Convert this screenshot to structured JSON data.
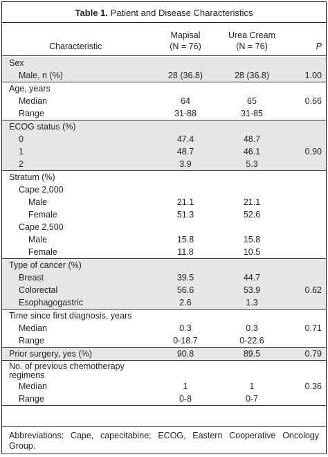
{
  "caption": {
    "number": "Table 1.",
    "title": " Patient and Disease Characteristics"
  },
  "header": {
    "characteristic": "Characteristic",
    "col1_name": "Mapisal",
    "col1_n": "(N = 76)",
    "col2_name": "Urea Cream",
    "col2_n": "(N = 76)",
    "col3": "P"
  },
  "sections": [
    {
      "rows": [
        {
          "label": "Sex",
          "indent": 0,
          "mapisal": "",
          "urea": "",
          "p": ""
        },
        {
          "label": "Male, n (%)",
          "indent": 1,
          "mapisal": "28 (36.8)",
          "urea": "28 (36.8)",
          "p": "1.00"
        }
      ]
    },
    {
      "rows": [
        {
          "label": "Age, years",
          "indent": 0,
          "mapisal": "",
          "urea": "",
          "p": ""
        },
        {
          "label": "Median",
          "indent": 1,
          "mapisal": "64",
          "urea": "65",
          "p": "0.66"
        },
        {
          "label": "Range",
          "indent": 1,
          "mapisal": "31-88",
          "urea": "31-85",
          "p": ""
        }
      ]
    },
    {
      "rows": [
        {
          "label": "ECOG status (%)",
          "indent": 0,
          "mapisal": "",
          "urea": "",
          "p": ""
        },
        {
          "label": "0",
          "indent": 1,
          "mapisal": "47.4",
          "urea": "48.7",
          "p": ""
        },
        {
          "label": "1",
          "indent": 1,
          "mapisal": "48.7",
          "urea": "46.1",
          "p": "0.90"
        },
        {
          "label": "2",
          "indent": 1,
          "mapisal": "3.9",
          "urea": "5.3",
          "p": ""
        }
      ]
    },
    {
      "rows": [
        {
          "label": "Stratum (%)",
          "indent": 0,
          "mapisal": "",
          "urea": "",
          "p": ""
        },
        {
          "label": "Cape 2,000",
          "indent": 1,
          "mapisal": "",
          "urea": "",
          "p": ""
        },
        {
          "label": "Male",
          "indent": 2,
          "mapisal": "21.1",
          "urea": "21.1",
          "p": ""
        },
        {
          "label": "Female",
          "indent": 2,
          "mapisal": "51.3",
          "urea": "52.6",
          "p": ""
        },
        {
          "label": "Cape 2,500",
          "indent": 1,
          "mapisal": "",
          "urea": "",
          "p": ""
        },
        {
          "label": "Male",
          "indent": 2,
          "mapisal": "15.8",
          "urea": "15.8",
          "p": ""
        },
        {
          "label": "Female",
          "indent": 2,
          "mapisal": "11.8",
          "urea": "10.5",
          "p": ""
        }
      ]
    },
    {
      "rows": [
        {
          "label": "Type of cancer (%)",
          "indent": 0,
          "mapisal": "",
          "urea": "",
          "p": ""
        },
        {
          "label": "Breast",
          "indent": 1,
          "mapisal": "39.5",
          "urea": "44.7",
          "p": ""
        },
        {
          "label": "Colorectal",
          "indent": 1,
          "mapisal": "56.6",
          "urea": "53.9",
          "p": "0.62"
        },
        {
          "label": "Esophagogastric",
          "indent": 1,
          "mapisal": "2.6",
          "urea": "1.3",
          "p": ""
        }
      ]
    },
    {
      "rows": [
        {
          "label": "Time since first diagnosis, years",
          "indent": 0,
          "mapisal": "",
          "urea": "",
          "p": ""
        },
        {
          "label": "Median",
          "indent": 1,
          "mapisal": "0.3",
          "urea": "0.3",
          "p": "0.71"
        },
        {
          "label": "Range",
          "indent": 1,
          "mapisal": "0-18.7",
          "urea": "0-22.6",
          "p": ""
        }
      ]
    },
    {
      "rows": [
        {
          "label": "Prior surgery, yes (%)",
          "indent": 0,
          "mapisal": "90.8",
          "urea": "89.5",
          "p": "0.79"
        }
      ]
    },
    {
      "rows": [
        {
          "label": "No. of previous chemotherapy regimens",
          "indent": 0,
          "wrap": true,
          "mapisal": "",
          "urea": "",
          "p": ""
        },
        {
          "label": "Median",
          "indent": 1,
          "mapisal": "1",
          "urea": "1",
          "p": "0.36"
        },
        {
          "label": "Range",
          "indent": 1,
          "mapisal": "0-8",
          "urea": "0-7",
          "p": ""
        }
      ]
    }
  ],
  "footnote": "Abbreviations: Cape, capecitabine; ECOG, Eastern Cooperative Oncology Group."
}
